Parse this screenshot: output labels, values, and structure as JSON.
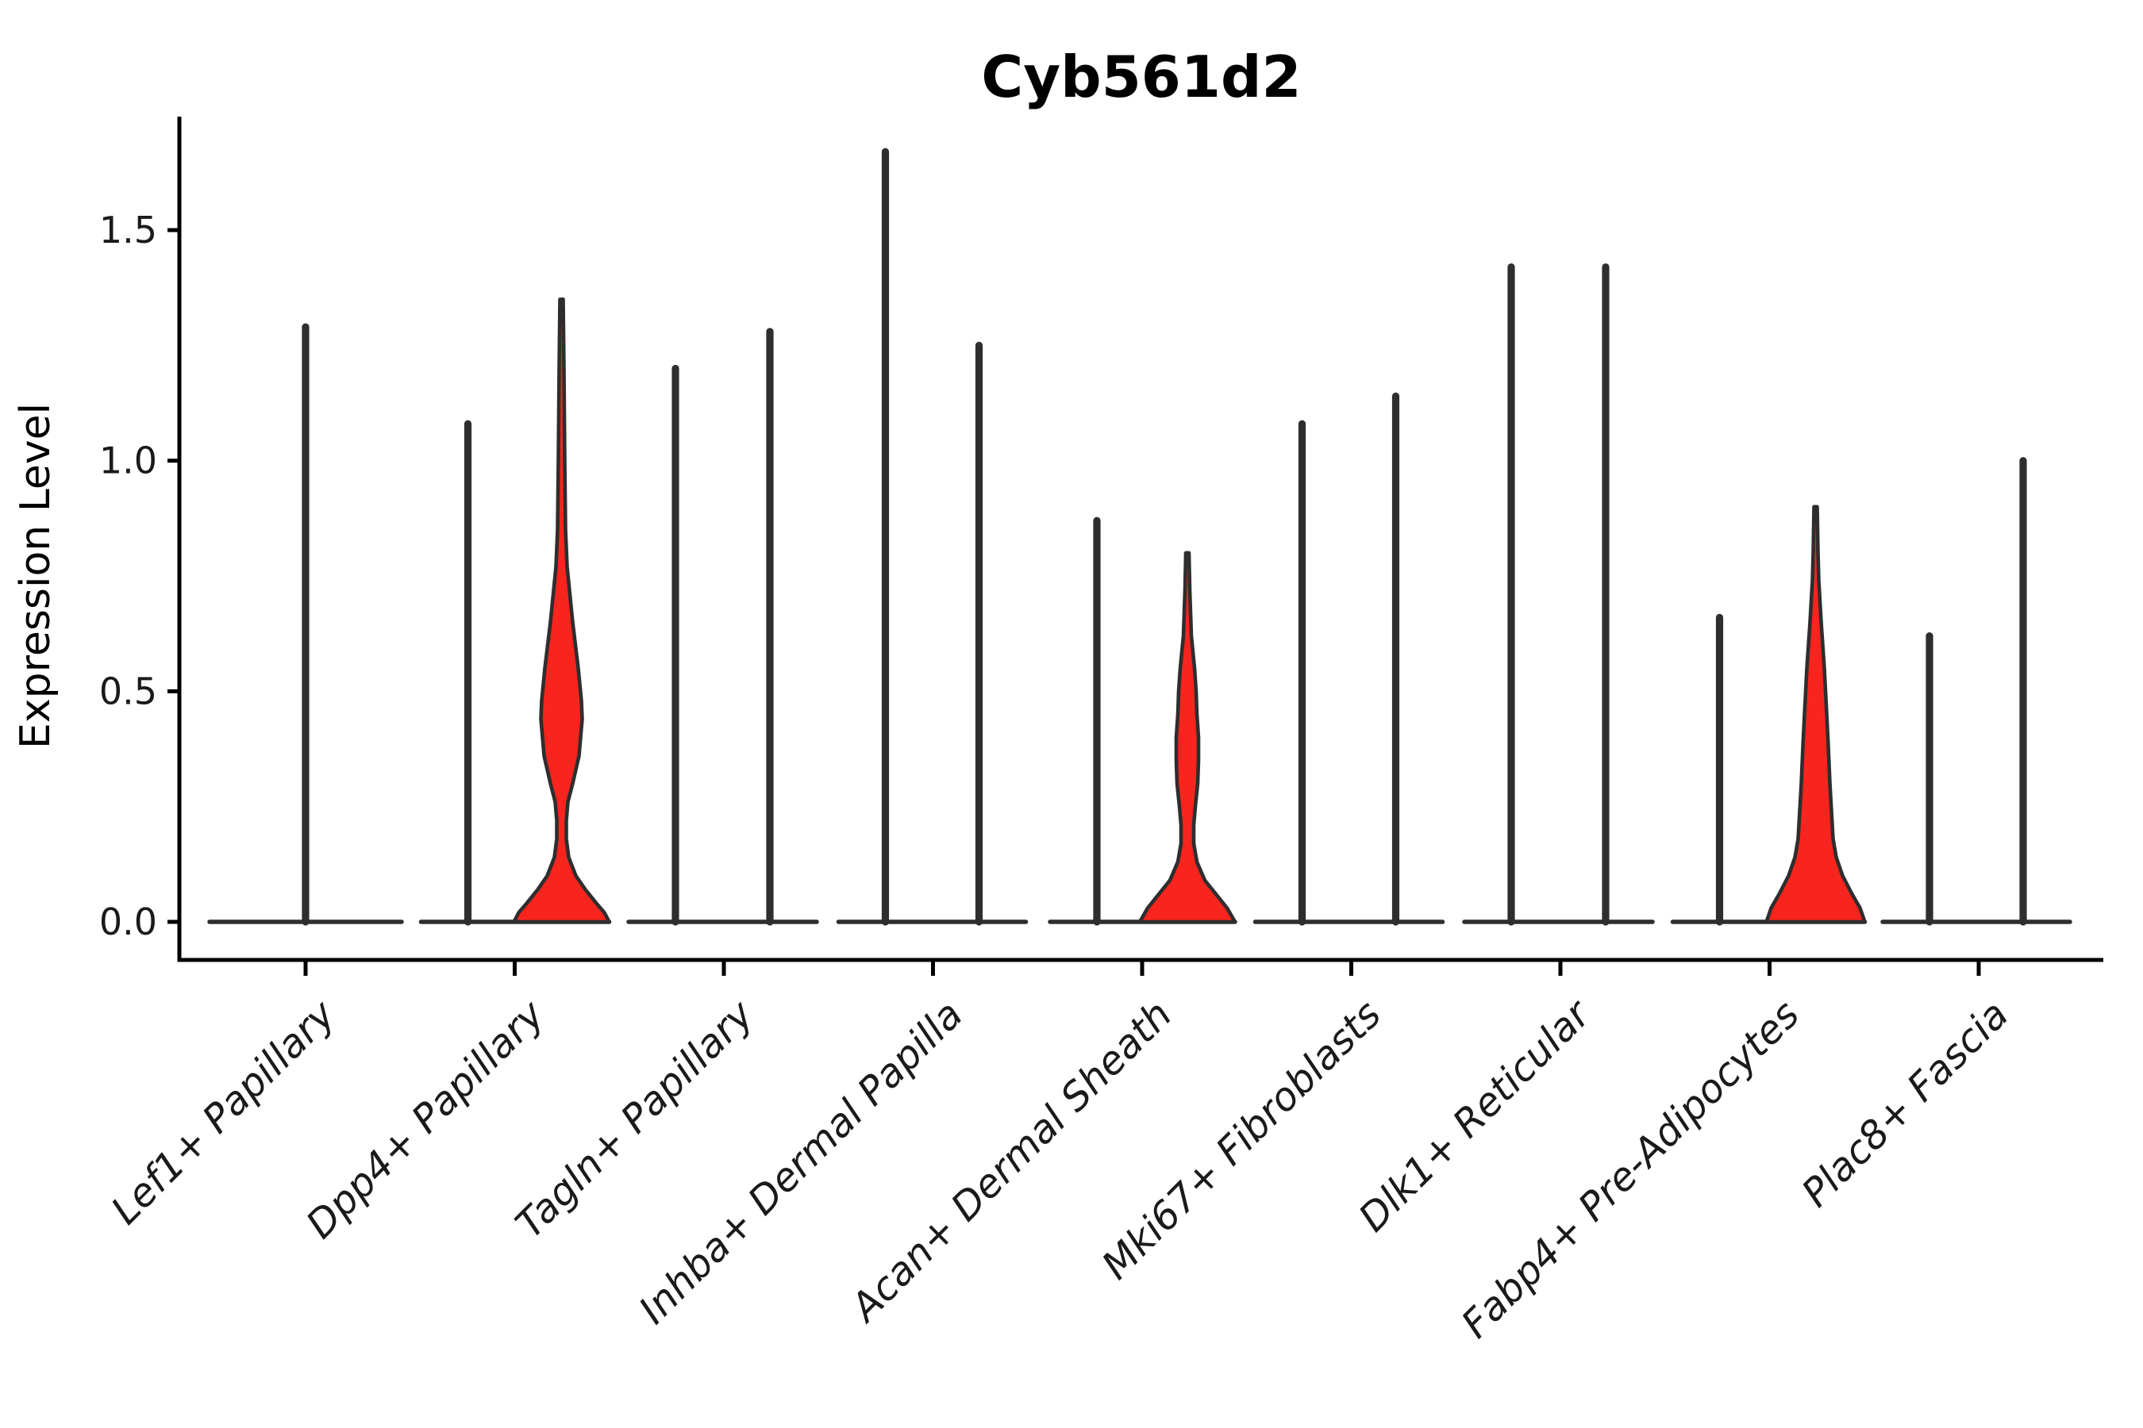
{
  "page": {
    "background": "#ffffff"
  },
  "chart_data": {
    "type": "violin",
    "title": "Cyb561d2",
    "ylabel": "Expression Level",
    "xlabel": "",
    "grid": false,
    "legend": "none",
    "ylim": [
      -0.08,
      1.75
    ],
    "yticks": [
      {
        "value": 0.0,
        "label": "0.0"
      },
      {
        "value": 0.5,
        "label": "0.5"
      },
      {
        "value": 1.0,
        "label": "1.0"
      },
      {
        "value": 1.5,
        "label": "1.5"
      }
    ],
    "colors": {
      "violin_outline": "#2e2e2e",
      "violin_fill_red": "#f8251e",
      "axis": "#000000"
    },
    "categories": [
      "Lef1+ Papillary",
      "Dpp4+ Papillary",
      "Tagln+ Papillary",
      "Inhba+ Dermal Papilla",
      "Acan+ Dermal Sheath",
      "Mki67+ Fibroblasts",
      "Dlk1+ Reticular",
      "Fabp4+ Pre-Adipocytes",
      "Plac8+ Fascia"
    ],
    "violins": [
      {
        "category": "Lef1+ Papillary",
        "groups": [
          {
            "offset": 0,
            "base_half_width": 121,
            "max": 1.29,
            "fill": "none"
          }
        ]
      },
      {
        "category": "Dpp4+ Papillary",
        "groups": [
          {
            "offset": -59,
            "base_half_width": 59,
            "max": 1.08,
            "fill": "none"
          },
          {
            "offset": 59,
            "base_half_width": 60,
            "max": 1.35,
            "fill": "red",
            "profile": [
              [
                1.35,
                2
              ],
              [
                1.2,
                3
              ],
              [
                1.0,
                4
              ],
              [
                0.85,
                5
              ],
              [
                0.77,
                7
              ],
              [
                0.65,
                14
              ],
              [
                0.55,
                21
              ],
              [
                0.48,
                25
              ],
              [
                0.44,
                26
              ],
              [
                0.36,
                22
              ],
              [
                0.3,
                14
              ],
              [
                0.26,
                8
              ],
              [
                0.22,
                6
              ],
              [
                0.18,
                6
              ],
              [
                0.14,
                9
              ],
              [
                0.1,
                18
              ],
              [
                0.07,
                30
              ],
              [
                0.04,
                44
              ],
              [
                0.02,
                54
              ],
              [
                0.0,
                60
              ]
            ]
          }
        ]
      },
      {
        "category": "Tagln+ Papillary",
        "groups": [
          {
            "offset": -61,
            "base_half_width": 59,
            "max": 1.2,
            "fill": "none"
          },
          {
            "offset": 58,
            "base_half_width": 59,
            "max": 1.28,
            "fill": "none"
          }
        ]
      },
      {
        "category": "Inhba+ Dermal Papilla",
        "groups": [
          {
            "offset": -60,
            "base_half_width": 59,
            "max": 1.67,
            "fill": "none"
          },
          {
            "offset": 58,
            "base_half_width": 59,
            "max": 1.25,
            "fill": "none"
          }
        ]
      },
      {
        "category": "Acan+ Dermal Sheath",
        "groups": [
          {
            "offset": -57,
            "base_half_width": 59,
            "max": 0.87,
            "fill": "none"
          },
          {
            "offset": 57,
            "base_half_width": 60,
            "max": 0.8,
            "fill": "red",
            "profile": [
              [
                0.8,
                2
              ],
              [
                0.72,
                3
              ],
              [
                0.62,
                5
              ],
              [
                0.55,
                9
              ],
              [
                0.5,
                11
              ],
              [
                0.45,
                12
              ],
              [
                0.4,
                14
              ],
              [
                0.35,
                14
              ],
              [
                0.3,
                13
              ],
              [
                0.25,
                10
              ],
              [
                0.21,
                8
              ],
              [
                0.17,
                8
              ],
              [
                0.13,
                12
              ],
              [
                0.09,
                22
              ],
              [
                0.06,
                36
              ],
              [
                0.03,
                50
              ],
              [
                0.0,
                60
              ]
            ]
          }
        ]
      },
      {
        "category": "Mki67+ Fibroblasts",
        "groups": [
          {
            "offset": -62,
            "base_half_width": 59,
            "max": 1.08,
            "fill": "none"
          },
          {
            "offset": 56,
            "base_half_width": 59,
            "max": 1.14,
            "fill": "none"
          }
        ]
      },
      {
        "category": "Dlk1+ Reticular",
        "groups": [
          {
            "offset": -62,
            "base_half_width": 59,
            "max": 1.42,
            "fill": "none"
          },
          {
            "offset": 57,
            "base_half_width": 59,
            "max": 1.42,
            "fill": "none"
          }
        ]
      },
      {
        "category": "Fabp4+ Pre-Adipocytes",
        "groups": [
          {
            "offset": -63,
            "base_half_width": 59,
            "max": 0.66,
            "fill": "none"
          },
          {
            "offset": 58,
            "base_half_width": 62,
            "max": 0.9,
            "fill": "red",
            "profile": [
              [
                0.9,
                2
              ],
              [
                0.8,
                3
              ],
              [
                0.74,
                4
              ],
              [
                0.65,
                7
              ],
              [
                0.55,
                11
              ],
              [
                0.45,
                14
              ],
              [
                0.38,
                16
              ],
              [
                0.3,
                18
              ],
              [
                0.24,
                20
              ],
              [
                0.18,
                22
              ],
              [
                0.14,
                26
              ],
              [
                0.1,
                34
              ],
              [
                0.06,
                46
              ],
              [
                0.03,
                56
              ],
              [
                0.0,
                62
              ]
            ]
          }
        ]
      },
      {
        "category": "Plac8+ Fascia",
        "groups": [
          {
            "offset": -62,
            "base_half_width": 59,
            "max": 0.62,
            "fill": "none"
          },
          {
            "offset": 56,
            "base_half_width": 59,
            "max": 1.0,
            "fill": "none"
          }
        ]
      }
    ]
  }
}
